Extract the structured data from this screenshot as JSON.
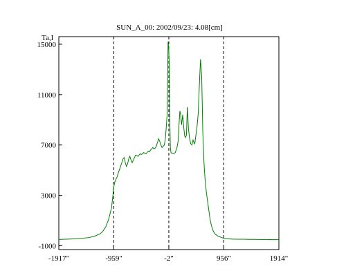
{
  "chart_data": {
    "type": "line",
    "title": "SUN_A_00: 2002/09/23: 4.08[cm]",
    "xlabel": "",
    "ylabel": "Ta,I",
    "xlim": [
      -1917,
      1914
    ],
    "ylim": [
      -1300,
      15600
    ],
    "x_ticks": [
      {
        "value": -1917,
        "label": "-1917\""
      },
      {
        "value": -959,
        "label": "-959\""
      },
      {
        "value": -2,
        "label": "-2\""
      },
      {
        "value": 956,
        "label": "956\""
      },
      {
        "value": 1914,
        "label": "1914\""
      }
    ],
    "y_ticks": [
      {
        "value": 15000,
        "label": "15000"
      },
      {
        "value": 11000,
        "label": "11000"
      },
      {
        "value": 7000,
        "label": "7000"
      },
      {
        "value": 3000,
        "label": "3000"
      },
      {
        "value": -1000,
        "label": "-1000"
      }
    ],
    "vlines": [
      -959,
      -2,
      956
    ],
    "grid": false,
    "series": [
      {
        "color": "#008000",
        "x": [
          -1917,
          -1800,
          -1600,
          -1400,
          -1300,
          -1200,
          -1150,
          -1100,
          -1050,
          -1000,
          -980,
          -959,
          -940,
          -920,
          -900,
          -880,
          -850,
          -820,
          -800,
          -780,
          -760,
          -740,
          -720,
          -700,
          -680,
          -660,
          -640,
          -620,
          -600,
          -580,
          -560,
          -540,
          -520,
          -500,
          -480,
          -460,
          -440,
          -420,
          -400,
          -380,
          -360,
          -340,
          -320,
          -300,
          -280,
          -260,
          -240,
          -220,
          -200,
          -180,
          -160,
          -140,
          -120,
          -100,
          -80,
          -60,
          -45,
          -30,
          -15,
          -5,
          5,
          15,
          25,
          35,
          50,
          80,
          110,
          140,
          160,
          175,
          190,
          205,
          220,
          240,
          260,
          275,
          290,
          305,
          320,
          340,
          360,
          380,
          400,
          420,
          435,
          450,
          470,
          490,
          510,
          530,
          550,
          570,
          590,
          610,
          630,
          650,
          665,
          680,
          695,
          710,
          725,
          740,
          760,
          780,
          800,
          830,
          860,
          890,
          920,
          940,
          956,
          970,
          990,
          1010,
          1040,
          1080,
          1120,
          1200,
          1300,
          1400,
          1500,
          1600,
          1700,
          1800,
          1914
        ],
        "y": [
          -500,
          -480,
          -440,
          -350,
          -250,
          -50,
          150,
          500,
          1100,
          2000,
          2800,
          3700,
          4100,
          4300,
          4500,
          4800,
          5200,
          5600,
          5900,
          6000,
          5600,
          5300,
          5500,
          5900,
          6100,
          5800,
          5600,
          5800,
          6000,
          6200,
          6150,
          6100,
          6200,
          6300,
          6250,
          6300,
          6400,
          6350,
          6300,
          6400,
          6500,
          6450,
          6600,
          6700,
          6800,
          6700,
          6750,
          6900,
          7200,
          7500,
          7300,
          7000,
          6800,
          6900,
          7000,
          7600,
          8500,
          9500,
          15200,
          14800,
          13500,
          9000,
          6800,
          6400,
          6350,
          6300,
          6400,
          6800,
          7300,
          8600,
          9700,
          9400,
          8600,
          9400,
          8300,
          7700,
          7600,
          7800,
          10000,
          8300,
          7500,
          7100,
          7000,
          7400,
          7200,
          7100,
          7800,
          8500,
          9500,
          11800,
          13800,
          12500,
          8000,
          5600,
          4200,
          3300,
          2800,
          2300,
          1800,
          1300,
          900,
          600,
          300,
          100,
          -50,
          -150,
          -250,
          -300,
          -350,
          -380,
          -400,
          -420,
          -430,
          -440,
          -450,
          -460,
          -470,
          -480,
          -480,
          -490,
          -490,
          -500,
          -500,
          -510,
          -510
        ]
      }
    ]
  }
}
